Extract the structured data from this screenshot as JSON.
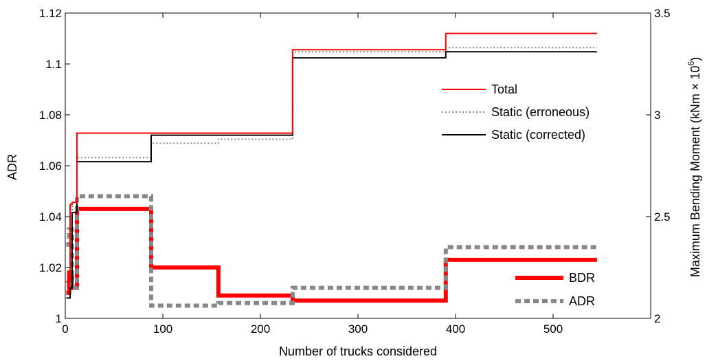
{
  "chart_data": {
    "type": "line",
    "xlabel": "Number of trucks considered",
    "ylabel_left": "ADR",
    "ylabel_right": "Maximum Bending Moment (kNm",
    "ylabel_right_times": "×",
    "ylabel_right_base": "10",
    "ylabel_right_exp": "6",
    "ylabel_right_close": ")",
    "xlim": [
      0,
      600
    ],
    "ylim_left": [
      1.0,
      1.12
    ],
    "ylim_right": [
      2.0,
      3.5
    ],
    "xticks": [
      0,
      100,
      200,
      300,
      400,
      500
    ],
    "yticks_left": [
      1,
      1.02,
      1.04,
      1.06,
      1.08,
      1.1,
      1.12
    ],
    "yticks_right": [
      2,
      2.5,
      3,
      3.5
    ],
    "legend_top": [
      "Total",
      "Static (erroneous)",
      "Static (corrected)"
    ],
    "legend_bottom": [
      "BDR",
      "ADR"
    ],
    "series": [
      {
        "name": "Total",
        "axis": "right",
        "color": "#ff0000",
        "style": "solid",
        "width": 2,
        "x": [
          1,
          5,
          7,
          12,
          88,
          233,
          390,
          545
        ],
        "y": [
          2.18,
          2.56,
          2.57,
          2.91,
          2.91,
          3.32,
          3.4,
          3.4
        ]
      },
      {
        "name": "Static (erroneous)",
        "axis": "right",
        "color": "#888888",
        "style": "dotted",
        "width": 2,
        "x": [
          1,
          5,
          7,
          12,
          88,
          157,
          233,
          390,
          545
        ],
        "y": [
          2.12,
          2.16,
          2.55,
          2.79,
          2.86,
          2.88,
          3.31,
          3.33,
          3.33
        ]
      },
      {
        "name": "Static (corrected)",
        "axis": "right",
        "color": "#000000",
        "style": "solid",
        "width": 2,
        "x": [
          1,
          5,
          7,
          12,
          88,
          233,
          390,
          545
        ],
        "y": [
          2.1,
          2.15,
          2.52,
          2.77,
          2.9,
          3.28,
          3.31,
          3.31
        ]
      },
      {
        "name": "BDR",
        "axis": "left",
        "color": "#ff0000",
        "style": "solid",
        "width": 6,
        "x": [
          1,
          4,
          7,
          12,
          88,
          157,
          233,
          390,
          545
        ],
        "y": [
          1.01,
          1.018,
          1.012,
          1.043,
          1.02,
          1.009,
          1.007,
          1.023,
          1.023
        ]
      },
      {
        "name": "ADR",
        "axis": "left",
        "color": "#888888",
        "style": "dashed",
        "width": 6,
        "x": [
          1,
          4,
          7,
          12,
          88,
          157,
          233,
          390,
          545
        ],
        "y": [
          1.029,
          1.035,
          1.012,
          1.048,
          1.005,
          1.006,
          1.012,
          1.028,
          1.028
        ]
      }
    ]
  }
}
